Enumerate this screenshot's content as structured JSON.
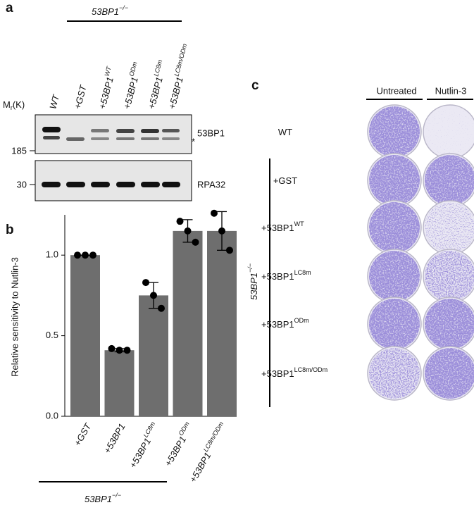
{
  "panel_a": {
    "label": "a",
    "group": {
      "text": "53BP1",
      "sup": "−/−"
    },
    "lanes": [
      {
        "text": "WT"
      },
      {
        "text": "+GST"
      },
      {
        "text": "+53BP1",
        "sup": "WT"
      },
      {
        "text": "+53BP1",
        "sup": "ODm"
      },
      {
        "text": "+53BP1",
        "sup": "LC8m"
      },
      {
        "text": "+53BP1",
        "sup": "LC8m/ODm"
      }
    ],
    "mr": {
      "text": "M",
      "sub": "r",
      "after": "(K)"
    },
    "markers": [
      "185",
      "30"
    ],
    "bands": [
      "53BP1",
      "RPA32"
    ],
    "asterisk": "*"
  },
  "chart_data": {
    "type": "bar",
    "label": "b",
    "ylabel": "Relative sensitivity to Nutlin-3",
    "categories": [
      "+GST",
      "+53BP1",
      "+53BP1",
      "+53BP1",
      "+53BP1"
    ],
    "category_superscripts": [
      null,
      null,
      "LC8m",
      "ODm",
      "LC8m/ODm"
    ],
    "values": [
      1.0,
      0.41,
      0.75,
      1.15,
      1.15
    ],
    "errors": [
      0,
      0.01,
      0.08,
      0.07,
      0.12
    ],
    "points": [
      [
        1.0,
        1.0,
        1.0
      ],
      [
        0.42,
        0.41,
        0.41
      ],
      [
        0.83,
        0.75,
        0.67
      ],
      [
        1.21,
        1.15,
        1.08
      ],
      [
        1.26,
        1.15,
        1.03
      ]
    ],
    "color": "#6e6e6e",
    "ylim": [
      0,
      1.25
    ],
    "yticks": [
      {
        "value": 0,
        "label": "0.0"
      },
      {
        "value": 0.5,
        "label": "0.5"
      },
      {
        "value": 1,
        "label": "1.0"
      }
    ],
    "group": {
      "text": "53BP1",
      "sup": "−/−"
    }
  },
  "panel_c": {
    "label": "c",
    "columns": [
      "Untreated",
      "Nutlin-3"
    ],
    "rows": [
      {
        "text": "WT"
      },
      {
        "text": "+GST"
      },
      {
        "text": "+53BP1",
        "sup": "WT"
      },
      {
        "text": "+53BP1",
        "sup": "LC8m"
      },
      {
        "text": "+53BP1",
        "sup": "ODm"
      },
      {
        "text": "+53BP1",
        "sup": "LC8m/ODm"
      }
    ],
    "group": {
      "text": "53BP1",
      "sup": "−/−"
    }
  }
}
